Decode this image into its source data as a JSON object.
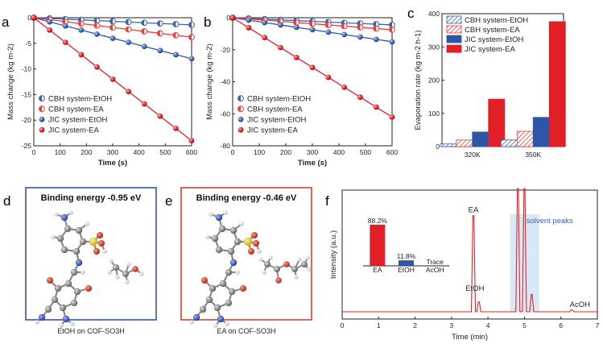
{
  "panels": {
    "a": "a",
    "b": "b",
    "c": "c",
    "d": "d",
    "e": "e",
    "f": "f"
  },
  "colors": {
    "cbh_etoh": "#3a63b0",
    "cbh_ea": "#e8403a",
    "jic_etoh": "#2c57a8",
    "jic_ea": "#e21f26",
    "box_d": "#3b50a5",
    "box_e": "#d9402f",
    "chromatogram": "#e02525",
    "solvent_band": "#cfe2f5"
  },
  "chart_data": [
    {
      "panel": "a",
      "type": "line",
      "xlabel": "Time (s)",
      "ylabel": "Mass change (kg m-2)",
      "xlim": [
        0,
        600
      ],
      "ylim": [
        -25,
        0
      ],
      "xticks": [
        "0",
        "100",
        "200",
        "300",
        "400",
        "500",
        "600"
      ],
      "yticks": [
        "0",
        "-5",
        "-10",
        "-15",
        "-20",
        "-25"
      ],
      "x": [
        0,
        60,
        120,
        180,
        240,
        300,
        360,
        420,
        480,
        540,
        600
      ],
      "legend_position": "bottom-left",
      "series": [
        {
          "name": "CBH system-EtOH",
          "marker": "half",
          "values": [
            0,
            -0.14,
            -0.28,
            -0.42,
            -0.56,
            -0.7,
            -0.84,
            -0.98,
            -1.12,
            -1.26,
            -1.4
          ]
        },
        {
          "name": "CBH system-EA",
          "marker": "half",
          "values": [
            0,
            -0.38,
            -0.76,
            -1.14,
            -1.52,
            -1.9,
            -2.28,
            -2.66,
            -3.04,
            -3.42,
            -3.8
          ]
        },
        {
          "name": "JIC system-EtOH",
          "marker": "full",
          "values": [
            0,
            -0.8,
            -1.6,
            -2.4,
            -3.2,
            -4.0,
            -4.8,
            -5.6,
            -6.4,
            -7.2,
            -8.0
          ]
        },
        {
          "name": "JIC system-EA",
          "marker": "full",
          "values": [
            0,
            -2.4,
            -4.8,
            -7.2,
            -9.6,
            -12.0,
            -14.4,
            -16.8,
            -19.2,
            -21.6,
            -24.0
          ]
        }
      ]
    },
    {
      "panel": "b",
      "type": "line",
      "xlabel": "Time (s)",
      "ylabel": "Mass change (kg m-2)",
      "xlim": [
        0,
        600
      ],
      "ylim": [
        -80,
        0
      ],
      "xticks": [
        "0",
        "100",
        "200",
        "300",
        "400",
        "500",
        "600"
      ],
      "yticks": [
        "0",
        "-20",
        "-40",
        "-60",
        "-80"
      ],
      "x": [
        0,
        60,
        120,
        180,
        240,
        300,
        360,
        420,
        480,
        540,
        600
      ],
      "legend_position": "bottom-left",
      "series": [
        {
          "name": "CBH system-EtOH",
          "marker": "half",
          "values": [
            0,
            -0.45,
            -0.9,
            -1.35,
            -1.8,
            -2.25,
            -2.7,
            -3.15,
            -3.6,
            -4.05,
            -4.5
          ]
        },
        {
          "name": "CBH system-EA",
          "marker": "half",
          "values": [
            0,
            -0.75,
            -1.5,
            -2.25,
            -3.0,
            -3.75,
            -4.5,
            -5.25,
            -6.0,
            -6.75,
            -7.5
          ]
        },
        {
          "name": "JIC system-EtOH",
          "marker": "full",
          "values": [
            0,
            -1.5,
            -3.0,
            -4.5,
            -6.0,
            -7.5,
            -9.0,
            -10.5,
            -12.0,
            -13.5,
            -15.0
          ]
        },
        {
          "name": "JIC system-EA",
          "marker": "full",
          "values": [
            0,
            -6.2,
            -12.4,
            -18.6,
            -24.8,
            -31.0,
            -37.2,
            -43.4,
            -49.6,
            -55.8,
            -62.0
          ]
        }
      ]
    },
    {
      "panel": "c",
      "type": "bar",
      "ylabel": "Evaporation rate (kg m-2 h-1)",
      "ylim": [
        0,
        400
      ],
      "yticks": [
        "0",
        "100",
        "200",
        "300",
        "400"
      ],
      "categories": [
        "320K",
        "350K"
      ],
      "legend_position": "top-left",
      "series": [
        {
          "name": "CBH system-EtOH",
          "pattern": "hatch-blue",
          "values": [
            8,
            20
          ]
        },
        {
          "name": "CBH system-EA",
          "pattern": "hatch-red",
          "values": [
            20,
            46
          ]
        },
        {
          "name": "JIC system-EtOH",
          "pattern": "solid-blue",
          "values": [
            44,
            88
          ]
        },
        {
          "name": "JIC system-EA",
          "pattern": "solid-red",
          "values": [
            143,
            376
          ]
        }
      ]
    },
    {
      "panel": "f",
      "type": "line",
      "xlabel": "Time (min)",
      "ylabel": "Intensity (a.u.)",
      "xlim": [
        0,
        7
      ],
      "xticks": [
        "0",
        "1",
        "2",
        "3",
        "4",
        "5",
        "6",
        "7"
      ],
      "peaks": [
        {
          "label": "EA",
          "time": 3.6,
          "height": 0.78
        },
        {
          "label": "EtOH",
          "time": 3.75,
          "height": 0.08
        },
        {
          "label": "",
          "time": 4.82,
          "height": 1.0
        },
        {
          "label": "",
          "time": 5.0,
          "height": 1.0
        },
        {
          "label": "",
          "time": 5.2,
          "height": 0.14
        },
        {
          "label": "AcOH",
          "time": 6.3,
          "height": 0.015
        }
      ],
      "solvent_band": {
        "label": "solvent peaks",
        "from": 4.6,
        "to": 5.4
      },
      "inset": {
        "type": "bar",
        "categories": [
          "EA",
          "EtOH",
          "AcOH"
        ],
        "values": [
          88.2,
          11.8,
          0
        ],
        "labels": [
          "88.2%",
          "11.8%",
          "Trace"
        ]
      }
    }
  ],
  "structures": {
    "d": {
      "title": "Binding energy -0.95 eV",
      "caption": "EtOH on COF-SO3H"
    },
    "e": {
      "title": "Binding energy -0.46 eV",
      "caption": "EA on COF-SO3H"
    }
  }
}
